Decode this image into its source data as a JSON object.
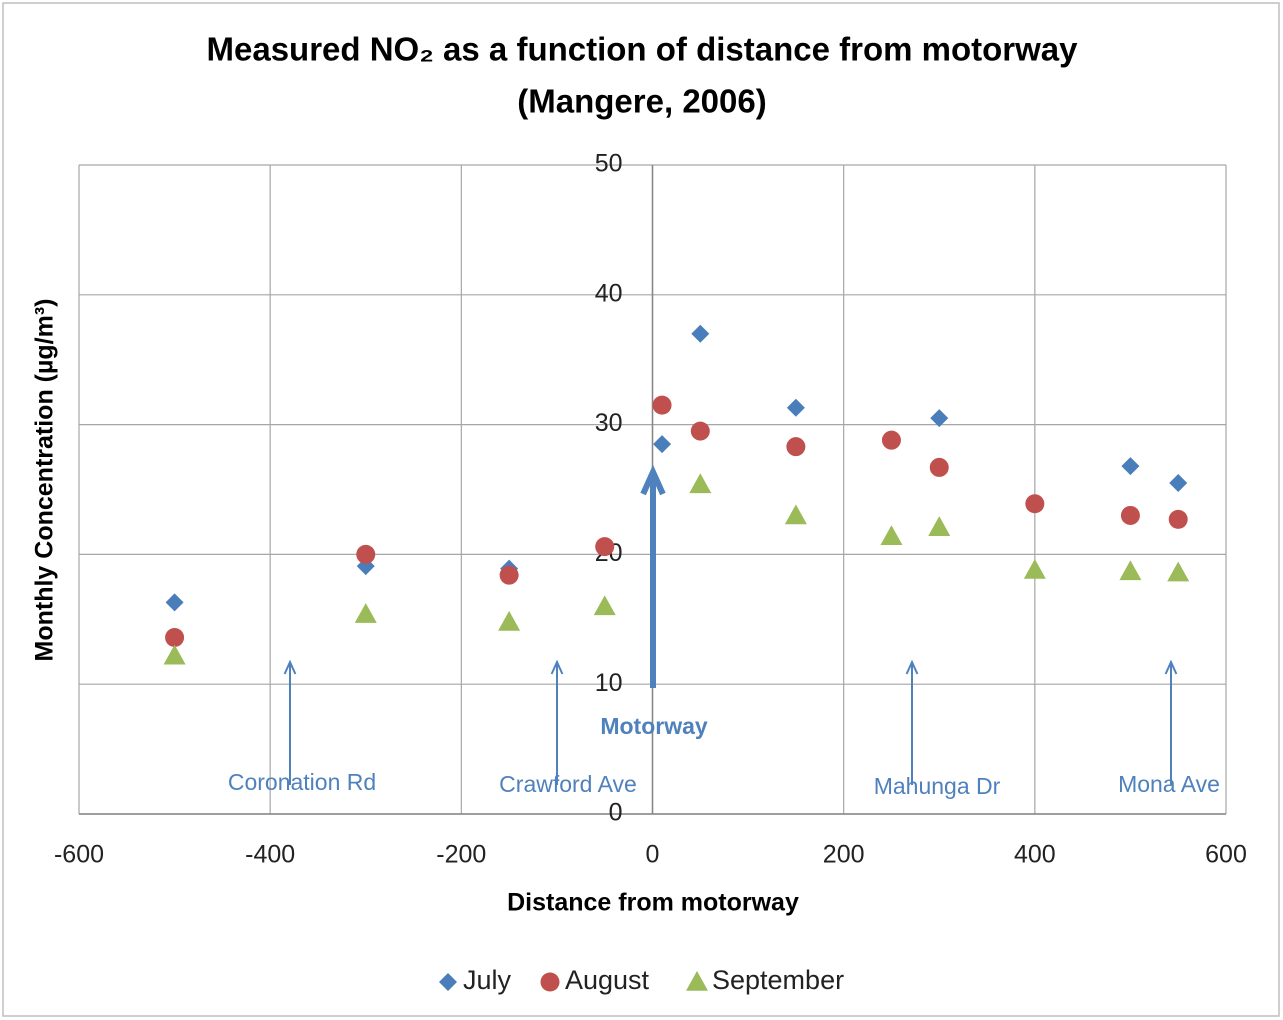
{
  "chart_data": {
    "type": "scatter",
    "title": [
      "Measured NO₂ as a function of distance from motorway",
      "(Mangere, 2006)"
    ],
    "xlabel": "Distance from motorway",
    "ylabel": "Monthly Concentration (µg/m³)",
    "xlim": [
      -600,
      600
    ],
    "xticks": [
      -600,
      -400,
      -200,
      0,
      200,
      400,
      600
    ],
    "ylim": [
      0,
      50
    ],
    "yticks": [
      0,
      10,
      20,
      30,
      40,
      50
    ],
    "grid": true,
    "legend": "bottom",
    "series": [
      {
        "name": "July",
        "color": "#4a7ebb",
        "marker": "diamond",
        "x": [
          -500,
          -300,
          -150,
          10,
          50,
          150,
          300,
          500,
          550
        ],
        "values": [
          16.3,
          19.1,
          18.9,
          28.5,
          37,
          31.3,
          30.5,
          26.8,
          25.5
        ]
      },
      {
        "name": "August",
        "color": "#c0504d",
        "marker": "circle",
        "x": [
          -500,
          -300,
          -150,
          -50,
          10,
          50,
          150,
          250,
          300,
          400,
          500,
          550
        ],
        "values": [
          13.6,
          20,
          18.4,
          20.6,
          31.5,
          29.5,
          28.3,
          28.8,
          26.7,
          23.9,
          23,
          22.7
        ]
      },
      {
        "name": "September",
        "color": "#9bbb59",
        "marker": "triangle",
        "x": [
          -500,
          -300,
          -150,
          -50,
          50,
          150,
          250,
          300,
          400,
          500,
          550
        ],
        "values": [
          12.2,
          15.4,
          14.8,
          16,
          25.4,
          23,
          21.4,
          22.1,
          18.8,
          18.7,
          18.6
        ]
      }
    ],
    "annotations": [
      "Coronation Rd",
      "Crawford Ave",
      "Motorway",
      "Mahunga  Dr",
      "Mona Ave"
    ]
  }
}
